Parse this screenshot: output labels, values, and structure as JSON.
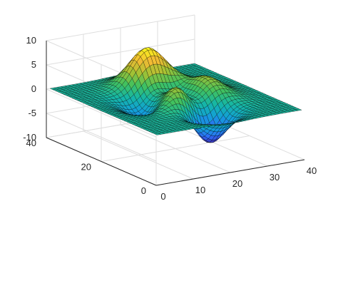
{
  "chart_data": {
    "type": "surface",
    "function": "peaks",
    "grid": true,
    "colormap": "parula",
    "colormap_stops": [
      "#3e26a8",
      "#2f6df8",
      "#139fd9",
      "#15b6a6",
      "#42c15d",
      "#a6c133",
      "#f2bb34",
      "#f9f71c"
    ],
    "surface_edge_color": "#000000",
    "axis_color": "#262626",
    "grid_color": "#dedede",
    "x": {
      "label": "",
      "lim": [
        0,
        40
      ],
      "ticks": [
        0,
        10,
        20,
        30,
        40
      ],
      "tick_labels": [
        "0",
        "10",
        "20",
        "30",
        "40"
      ]
    },
    "y": {
      "label": "",
      "lim": [
        0,
        40
      ],
      "ticks": [
        0,
        20,
        40
      ],
      "tick_labels": [
        "0",
        "20",
        "40"
      ]
    },
    "z": {
      "label": "",
      "lim": [
        -10,
        10
      ],
      "ticks": [
        -10,
        -5,
        0,
        5,
        10
      ],
      "tick_labels": [
        "-10",
        "-5",
        "0",
        "5",
        "10"
      ]
    },
    "grid_size": [
      40,
      40
    ],
    "peaks": [
      {
        "x": 20,
        "y": 30,
        "z": 8.1
      },
      {
        "x": 20,
        "y": 23,
        "z": 3.8
      },
      {
        "x": 29,
        "y": 23,
        "z": 2.0
      },
      {
        "x": 33,
        "y": 12,
        "z": 3.6
      },
      {
        "x": 25,
        "y": 8,
        "z": -6.6
      },
      {
        "x": 12,
        "y": 20,
        "z": -3.0
      }
    ]
  }
}
